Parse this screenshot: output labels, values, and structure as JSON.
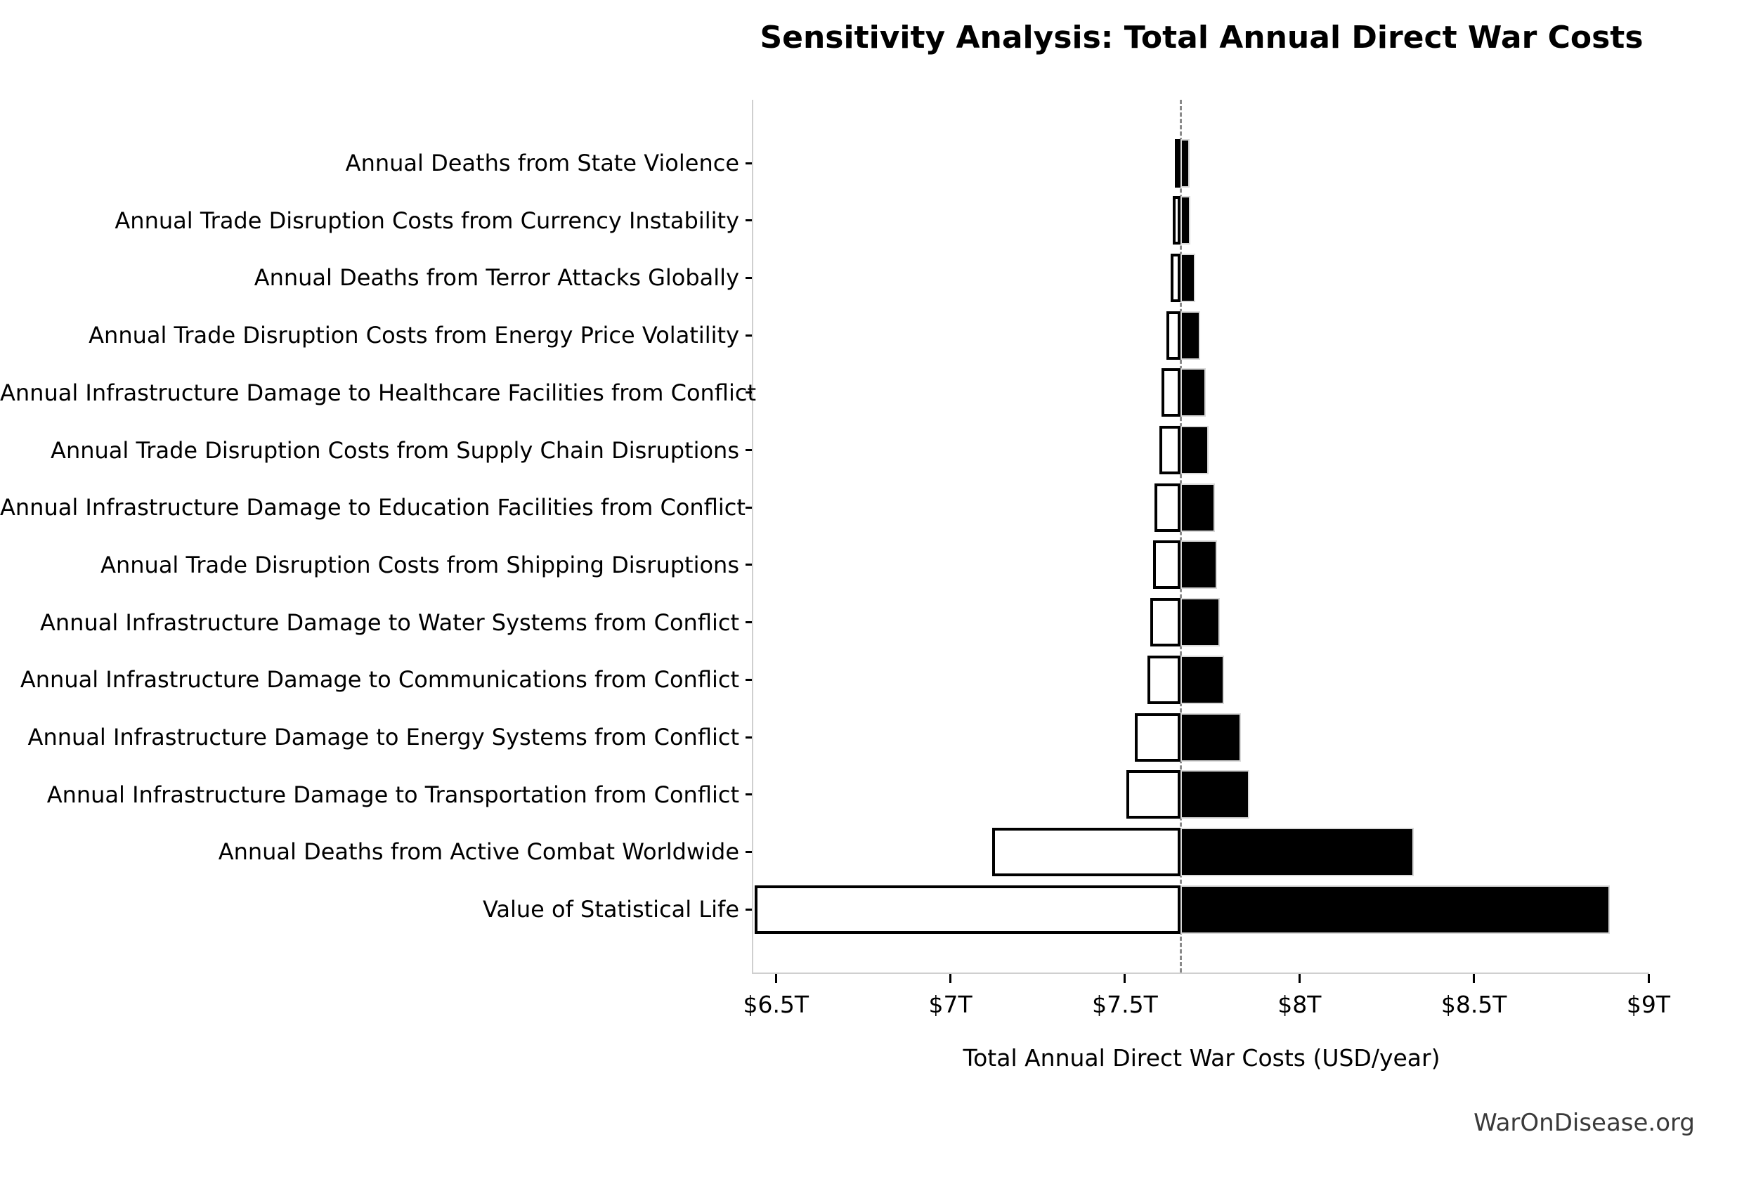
{
  "chart_data": {
    "type": "bar",
    "subtype": "tornado",
    "title": "Sensitivity Analysis: Total Annual Direct War Costs",
    "xlabel": "Total Annual Direct War Costs (USD/year)",
    "unit": "trillion USD per year",
    "grid": false,
    "legend_position": "none",
    "baseline": 7.66,
    "xlim": [
      6.435,
      9.0
    ],
    "x_tick_values": [
      6.5,
      7.0,
      7.5,
      8.0,
      8.5,
      9.0
    ],
    "x_tick_labels": [
      "$6.5T",
      "$7T",
      "$7.5T",
      "$8T",
      "$8.5T",
      "$9T"
    ],
    "colors": {
      "low_bar_fill": "#ffffff",
      "low_bar_edge": "#000000",
      "high_bar_fill": "#000000",
      "high_bar_edge": "#d8d8d8",
      "baseline_line": "#8a8a8a",
      "spine": "#cfcfcf"
    },
    "rows": [
      {
        "label": "Annual Deaths from State Violence",
        "low": 7.644,
        "high": 7.686
      },
      {
        "label": "Annual Trade Disruption Costs from Currency Instability",
        "low": 7.637,
        "high": 7.688
      },
      {
        "label": "Annual Deaths from Terror Attacks Globally",
        "low": 7.631,
        "high": 7.702
      },
      {
        "label": "Annual Trade Disruption Costs from Energy Price Volatility",
        "low": 7.619,
        "high": 7.716
      },
      {
        "label": "Annual Infrastructure Damage to Healthcare Facilities from Conflict",
        "low": 7.605,
        "high": 7.732
      },
      {
        "label": "Annual Trade Disruption Costs from Supply Chain Disruptions",
        "low": 7.599,
        "high": 7.739
      },
      {
        "label": "Annual Infrastructure Damage to Education Facilities from Conflict",
        "low": 7.585,
        "high": 7.758
      },
      {
        "label": "Annual Trade Disruption Costs from Shipping Disruptions",
        "low": 7.581,
        "high": 7.764
      },
      {
        "label": "Annual Infrastructure Damage to Water Systems from Conflict",
        "low": 7.573,
        "high": 7.772
      },
      {
        "label": "Annual Infrastructure Damage to Communications from Conflict",
        "low": 7.565,
        "high": 7.784
      },
      {
        "label": "Annual Infrastructure Damage to Energy Systems from Conflict",
        "low": 7.529,
        "high": 7.832
      },
      {
        "label": "Annual Infrastructure Damage to Transportation from Conflict",
        "low": 7.504,
        "high": 7.857
      },
      {
        "label": "Annual Deaths from Active Combat Worldwide",
        "low": 7.12,
        "high": 8.328
      },
      {
        "label": "Value of Statistical Life",
        "low": 6.44,
        "high": 8.889
      }
    ]
  },
  "footer": {
    "watermark": "WarOnDisease.org"
  }
}
